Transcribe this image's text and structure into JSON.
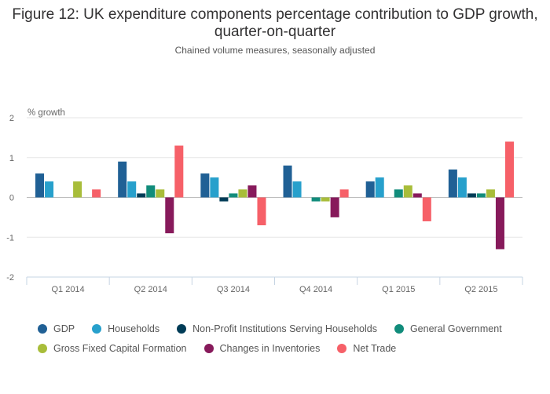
{
  "header": {
    "title": "Figure 12: UK expenditure components percentage contribution to GDP growth, quarter-on-quarter",
    "subtitle": "Chained volume measures, seasonally adjusted"
  },
  "chart_data": {
    "type": "bar",
    "title": "Figure 12: UK expenditure components percentage contribution to GDP growth, quarter-on-quarter",
    "subtitle": "Chained volume measures, seasonally adjusted",
    "ylabel": "% growth",
    "xlabel": "",
    "ylim": [
      -2,
      2
    ],
    "yticks": [
      2,
      1,
      0,
      -1,
      -2
    ],
    "ytick_labels": [
      "2",
      "1",
      "0",
      "-1",
      "-2"
    ],
    "grid": true,
    "legend_position": "bottom",
    "categories": [
      "Q1 2014",
      "Q2 2014",
      "Q3 2014",
      "Q4 2014",
      "Q1 2015",
      "Q2 2015"
    ],
    "series": [
      {
        "name": "GDP",
        "color": "#206095",
        "values": [
          0.6,
          0.9,
          0.6,
          0.8,
          0.4,
          0.7
        ]
      },
      {
        "name": "Households",
        "color": "#27a0cc",
        "values": [
          0.4,
          0.4,
          0.5,
          0.4,
          0.5,
          0.5
        ]
      },
      {
        "name": "Non-Profit Institutions Serving Households",
        "color": "#003c57",
        "values": [
          0.0,
          0.1,
          -0.1,
          0.0,
          0.0,
          0.1
        ]
      },
      {
        "name": "General Government",
        "color": "#118c7b",
        "values": [
          0.0,
          0.3,
          0.1,
          -0.1,
          0.2,
          0.1
        ]
      },
      {
        "name": "Gross Fixed Capital Formation",
        "color": "#a8bd3a",
        "values": [
          0.4,
          0.2,
          0.2,
          -0.1,
          0.3,
          0.2
        ]
      },
      {
        "name": "Changes in Inventories",
        "color": "#871a5b",
        "values": [
          0.0,
          -0.9,
          0.3,
          -0.5,
          0.1,
          -1.3
        ]
      },
      {
        "name": "Net Trade",
        "color": "#f66068",
        "values": [
          0.2,
          1.3,
          -0.7,
          0.2,
          -0.6,
          1.4
        ]
      }
    ]
  }
}
